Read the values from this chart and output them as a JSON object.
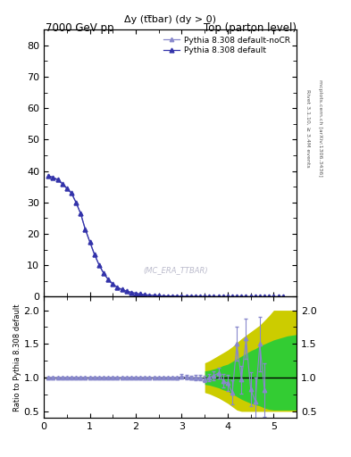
{
  "title_left": "7000 GeV pp",
  "title_right": "Top (parton level)",
  "main_title": "Δy (tt̅bar) (dy > 0)",
  "watermark": "(MC_ERA_TTBAR)",
  "right_label_top": "Rivet 3.1.10, ≥ 3.4M events",
  "right_label_bottom": "mcplots.cern.ch [arXiv:1306.3436]",
  "ylabel_ratio": "Ratio to Pythia 8.308 default",
  "legend1": "Pythia 8.308 default",
  "legend2": "Pythia 8.308 default-noCR",
  "xlim": [
    0,
    5.5
  ],
  "ylim_main": [
    0,
    85
  ],
  "ylim_ratio": [
    0.4,
    2.2
  ],
  "yticks_main": [
    0,
    10,
    20,
    30,
    40,
    50,
    60,
    70,
    80
  ],
  "yticks_ratio": [
    0.5,
    1.0,
    1.5,
    2.0
  ],
  "xticks": [
    0,
    1,
    2,
    3,
    4,
    5
  ],
  "color_main": "#3333aa",
  "color_nocr": "#8888cc",
  "green_band": "#33cc33",
  "yellow_band": "#cccc00",
  "main_x": [
    0.1,
    0.2,
    0.3,
    0.4,
    0.5,
    0.6,
    0.7,
    0.8,
    0.9,
    1.0,
    1.1,
    1.2,
    1.3,
    1.4,
    1.5,
    1.6,
    1.7,
    1.8,
    1.9,
    2.0,
    2.1,
    2.2,
    2.3,
    2.4,
    2.5,
    2.6,
    2.7,
    2.8,
    2.9,
    3.0,
    3.1,
    3.2,
    3.3,
    3.4,
    3.5,
    3.6,
    3.7,
    3.8,
    3.9,
    4.0,
    4.1,
    4.2,
    4.3,
    4.4,
    4.5,
    4.6,
    4.7,
    4.8,
    4.9,
    5.0,
    5.1,
    5.2
  ],
  "main_y": [
    38.5,
    38.0,
    37.3,
    36.0,
    34.5,
    33.0,
    30.0,
    26.5,
    21.5,
    17.5,
    13.5,
    10.2,
    7.5,
    5.5,
    4.0,
    3.0,
    2.3,
    1.8,
    1.4,
    1.1,
    0.85,
    0.65,
    0.5,
    0.4,
    0.3,
    0.25,
    0.2,
    0.17,
    0.14,
    0.12,
    0.1,
    0.09,
    0.08,
    0.07,
    0.06,
    0.05,
    0.04,
    0.04,
    0.03,
    0.03,
    0.025,
    0.02,
    0.02,
    0.015,
    0.01,
    0.01,
    0.008,
    0.006,
    0.005,
    0.004,
    0.003,
    0.002
  ],
  "ratio_x": [
    0.1,
    0.2,
    0.3,
    0.4,
    0.5,
    0.6,
    0.7,
    0.8,
    0.9,
    1.0,
    1.1,
    1.2,
    1.3,
    1.4,
    1.5,
    1.6,
    1.7,
    1.8,
    1.9,
    2.0,
    2.1,
    2.2,
    2.3,
    2.4,
    2.5,
    2.6,
    2.7,
    2.8,
    2.9,
    3.0,
    3.1,
    3.2,
    3.3,
    3.4,
    3.5,
    3.6,
    3.7,
    3.8,
    3.9,
    4.0,
    4.1,
    4.2,
    4.3,
    4.4,
    4.5,
    4.6,
    4.7,
    4.8
  ],
  "ratio_y": [
    1.0,
    1.0,
    1.0,
    1.0,
    1.0,
    1.0,
    1.0,
    1.0,
    1.0,
    1.0,
    1.0,
    1.0,
    1.0,
    1.0,
    1.0,
    1.0,
    1.0,
    1.0,
    1.0,
    1.0,
    1.0,
    1.0,
    1.0,
    1.0,
    1.0,
    1.0,
    1.0,
    1.0,
    1.0,
    1.02,
    1.01,
    1.0,
    1.0,
    1.0,
    0.98,
    1.0,
    1.03,
    1.07,
    0.95,
    0.92,
    0.78,
    1.5,
    0.97,
    1.58,
    0.83,
    0.65,
    1.5,
    0.82
  ],
  "ratio_err": [
    0.01,
    0.01,
    0.01,
    0.01,
    0.01,
    0.01,
    0.01,
    0.01,
    0.01,
    0.01,
    0.01,
    0.01,
    0.01,
    0.01,
    0.01,
    0.01,
    0.01,
    0.01,
    0.01,
    0.01,
    0.01,
    0.01,
    0.01,
    0.01,
    0.01,
    0.01,
    0.01,
    0.01,
    0.02,
    0.03,
    0.03,
    0.03,
    0.04,
    0.04,
    0.05,
    0.05,
    0.07,
    0.08,
    0.1,
    0.12,
    0.18,
    0.25,
    0.2,
    0.3,
    0.25,
    0.35,
    0.4,
    0.4
  ],
  "green_band_x": [
    3.5,
    3.6,
    3.7,
    3.8,
    3.9,
    4.0,
    4.1,
    4.2,
    4.3,
    4.4,
    4.5,
    4.6,
    4.7,
    4.8,
    4.9,
    5.0,
    5.1,
    5.2,
    5.3,
    5.4,
    5.5
  ],
  "green_band_lo": [
    0.9,
    0.89,
    0.87,
    0.85,
    0.82,
    0.8,
    0.76,
    0.72,
    0.68,
    0.65,
    0.62,
    0.6,
    0.58,
    0.55,
    0.53,
    0.52,
    0.52,
    0.52,
    0.52,
    0.52,
    0.52
  ],
  "green_band_hi": [
    1.1,
    1.11,
    1.13,
    1.15,
    1.18,
    1.2,
    1.24,
    1.28,
    1.32,
    1.36,
    1.4,
    1.43,
    1.47,
    1.5,
    1.53,
    1.56,
    1.58,
    1.6,
    1.62,
    1.63,
    1.64
  ],
  "yellow_band_x": [
    3.5,
    3.6,
    3.7,
    3.8,
    3.9,
    4.0,
    4.1,
    4.2,
    4.3,
    4.4,
    4.5,
    4.6,
    4.7,
    4.8,
    4.9,
    5.0,
    5.1,
    5.2,
    5.3,
    5.4,
    5.5
  ],
  "yellow_band_lo": [
    0.78,
    0.76,
    0.73,
    0.7,
    0.66,
    0.62,
    0.57,
    0.52,
    0.5,
    0.5,
    0.5,
    0.5,
    0.5,
    0.5,
    0.5,
    0.5,
    0.5,
    0.5,
    0.5,
    0.5,
    0.5
  ],
  "yellow_band_hi": [
    1.22,
    1.25,
    1.29,
    1.33,
    1.37,
    1.41,
    1.46,
    1.52,
    1.58,
    1.63,
    1.68,
    1.73,
    1.78,
    1.85,
    1.92,
    2.0,
    2.0,
    2.0,
    2.0,
    2.0,
    2.0
  ]
}
